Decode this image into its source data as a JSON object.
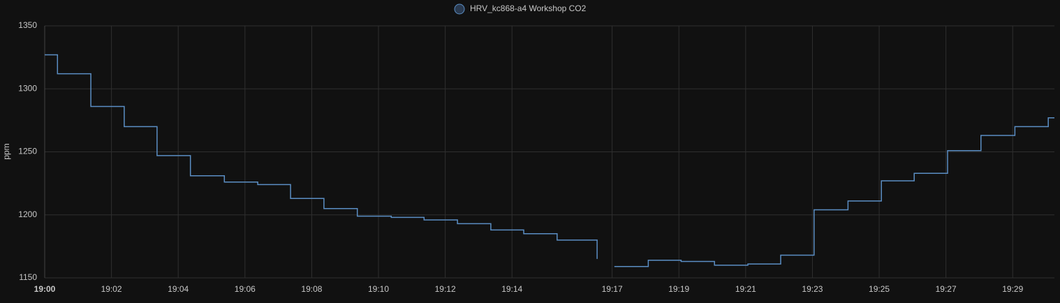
{
  "chart_data": {
    "type": "step-line",
    "y_label": "ppm",
    "series": [
      {
        "name": "HRV_kc868-a4 Workshop CO2",
        "color": "#5b8ec4",
        "x": [
          "19:00:00",
          "19:00:23",
          "19:01:23",
          "19:02:23",
          "19:03:22",
          "19:04:22",
          "19:05:23",
          "19:06:23",
          "19:07:22",
          "19:08:22",
          "19:09:22",
          "19:10:23",
          "19:11:22",
          "19:12:22",
          "19:13:22",
          "19:14:21",
          "19:15:21",
          "19:16:33",
          "19:16:50",
          "19:17:04",
          "19:18:05",
          "19:19:04",
          "19:20:04",
          "19:21:04",
          "19:22:03",
          "19:23:03",
          "19:24:04",
          "19:25:04",
          "19:26:03",
          "19:27:03",
          "19:28:03",
          "19:29:04",
          "19:30:04"
        ],
        "values": [
          1327,
          1312,
          1286,
          1270,
          1247,
          1231,
          1226,
          1224,
          1213,
          1205,
          1199,
          1198,
          1196,
          1193,
          1188,
          1185,
          1180,
          1165,
          null,
          1159,
          1164,
          1163,
          1160,
          1161,
          1168,
          1204,
          1211,
          1227,
          1233,
          1251,
          1263,
          1270,
          1277
        ]
      }
    ],
    "xlim": [
      "19:00:00",
      "19:30:15"
    ],
    "xticks": [
      "19:00",
      "19:02",
      "19:04",
      "19:06",
      "19:08",
      "19:10",
      "19:12",
      "19:14",
      "19:17",
      "19:19",
      "19:21",
      "19:23",
      "19:25",
      "19:27",
      "19:29"
    ],
    "ylim": [
      1150,
      1350
    ],
    "yticks": [
      1150,
      1200,
      1250,
      1300,
      1350
    ],
    "grid": true
  }
}
